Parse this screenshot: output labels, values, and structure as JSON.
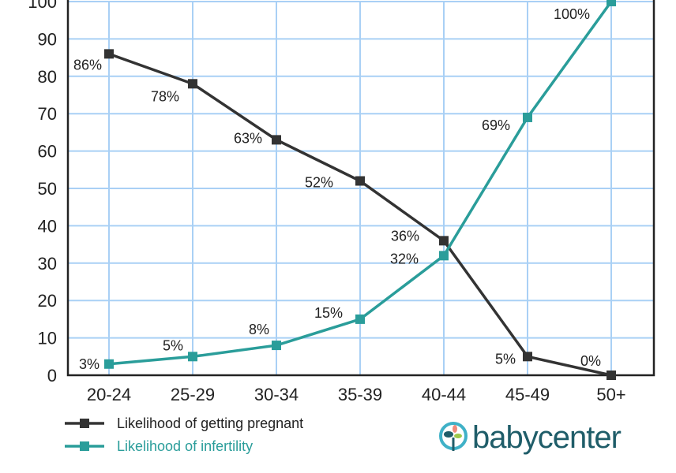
{
  "chart_data": {
    "type": "line",
    "title": "",
    "xlabel": "",
    "ylabel": "",
    "categories": [
      "20-24",
      "25-29",
      "30-34",
      "35-39",
      "40-44",
      "45-49",
      "50+"
    ],
    "ylim": [
      0,
      100
    ],
    "yticks": [
      0,
      10,
      20,
      30,
      40,
      50,
      60,
      70,
      80,
      90,
      100
    ],
    "grid": true,
    "legend_position": "bottom-left",
    "series": [
      {
        "name": "Likelihood of getting pregnant",
        "color": "#333333",
        "values": [
          86,
          78,
          63,
          52,
          36,
          5,
          0
        ],
        "labels": [
          "86%",
          "78%",
          "63%",
          "52%",
          "36%",
          "5%",
          "0%"
        ]
      },
      {
        "name": "Likelihood of infertility",
        "color": "#2a9d9a",
        "values": [
          3,
          5,
          8,
          15,
          32,
          69,
          100
        ],
        "labels": [
          "3%",
          "5%",
          "8%",
          "15%",
          "32%",
          "69%",
          "100%"
        ]
      }
    ],
    "grid_color": "#a9d0f5"
  },
  "branding": {
    "logo_text": "babycenter"
  }
}
